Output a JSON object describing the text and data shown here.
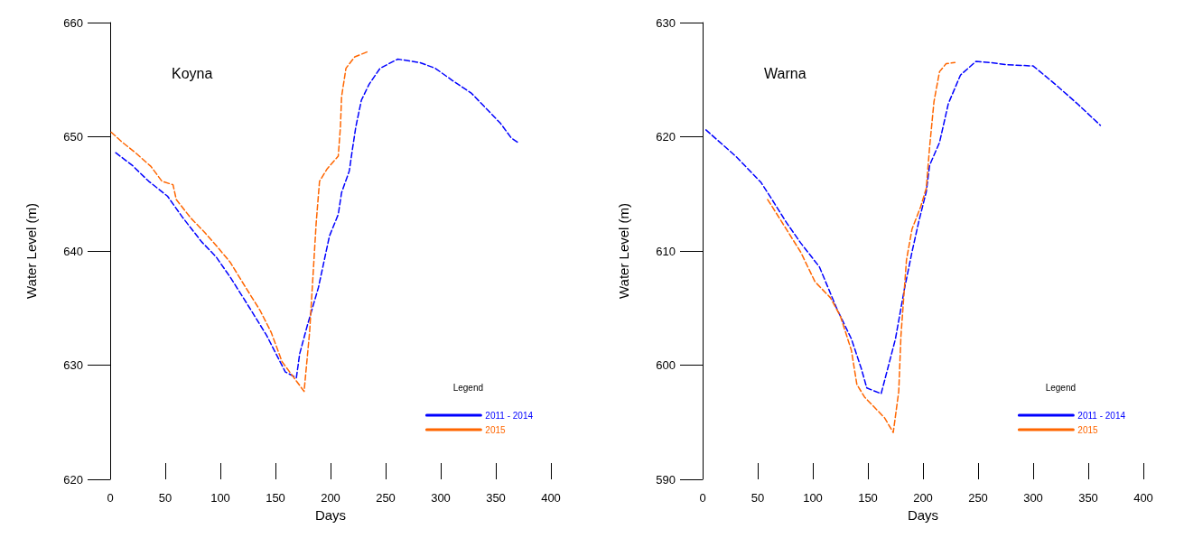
{
  "chart_data": [
    {
      "type": "line",
      "title": "Koyna",
      "xlabel": "Days",
      "ylabel": "Water Level (m)",
      "legend_title": "Legend",
      "legend": "bottom right",
      "grid": false,
      "marker": "none",
      "line_style": "dashed",
      "xlim": [
        0,
        400
      ],
      "xticks": [
        0,
        50,
        100,
        150,
        200,
        250,
        300,
        350,
        400
      ],
      "ylim": [
        620,
        660
      ],
      "yticks": [
        620,
        630,
        640,
        650,
        660
      ],
      "series": [
        {
          "name": "2011 - 2014",
          "color": "#0000ff",
          "x": [
            5,
            20,
            35,
            52,
            66,
            83,
            96,
            109,
            126,
            142,
            159,
            169,
            172,
            179,
            189,
            199,
            207,
            210,
            217,
            220,
            223,
            228,
            235,
            245,
            261,
            281,
            295,
            311,
            328,
            341,
            354,
            364,
            370
          ],
          "values": [
            648.6,
            647.5,
            646.1,
            644.8,
            642.9,
            640.8,
            639.5,
            637.7,
            635.1,
            632.6,
            629.4,
            628.9,
            631.0,
            633.5,
            636.8,
            641.3,
            643.2,
            645.1,
            647.0,
            649.0,
            650.9,
            653.2,
            654.6,
            656.0,
            656.8,
            656.5,
            656.0,
            654.9,
            653.8,
            652.5,
            651.2,
            649.9,
            649.5
          ]
        },
        {
          "name": "2015",
          "color": "#ff6600",
          "x": [
            1,
            10,
            23,
            37,
            47,
            57,
            60,
            73,
            86,
            96,
            109,
            123,
            136,
            146,
            156,
            166,
            176,
            181,
            184,
            187,
            190,
            197,
            207,
            209,
            210,
            214,
            222,
            235
          ],
          "values": [
            650.4,
            649.6,
            648.6,
            647.4,
            646.1,
            645.8,
            644.5,
            642.9,
            641.6,
            640.5,
            639.0,
            636.8,
            634.8,
            632.9,
            630.3,
            629.0,
            627.7,
            632.9,
            637.7,
            642.5,
            646.1,
            647.2,
            648.3,
            650.9,
            653.5,
            656.0,
            657.0,
            657.5
          ]
        }
      ]
    },
    {
      "type": "line",
      "title": "Warna",
      "xlabel": "Days",
      "ylabel": "Water Level (m)",
      "legend_title": "Legend",
      "legend": "bottom right",
      "grid": false,
      "marker": "none",
      "line_style": "dashed",
      "xlim": [
        0,
        400
      ],
      "xticks": [
        0,
        50,
        100,
        150,
        200,
        250,
        300,
        350,
        400
      ],
      "ylim": [
        590,
        630
      ],
      "yticks": [
        590,
        600,
        610,
        620,
        630
      ],
      "series": [
        {
          "name": "2011 - 2014",
          "color": "#0000ff",
          "x": [
            3,
            30,
            53,
            63,
            76,
            89,
            106,
            122,
            135,
            144,
            149,
            162,
            168,
            175,
            183,
            190,
            196,
            203,
            206,
            215,
            223,
            234,
            248,
            261,
            277,
            300,
            320,
            340,
            361
          ],
          "values": [
            620.6,
            618.3,
            616.0,
            614.5,
            612.5,
            610.7,
            608.6,
            604.9,
            602.3,
            599.7,
            598.0,
            597.5,
            599.7,
            602.3,
            606.6,
            609.9,
            612.5,
            615.2,
            617.5,
            619.5,
            622.9,
            625.4,
            626.6,
            626.5,
            626.3,
            626.2,
            624.6,
            622.9,
            621.0
          ]
        },
        {
          "name": "2015",
          "color": "#ff6600",
          "x": [
            59,
            63,
            76,
            89,
            102,
            116,
            125,
            135,
            140,
            147,
            155,
            165,
            173,
            178,
            180,
            185,
            190,
            198,
            203,
            206,
            210,
            215,
            221,
            229
          ],
          "values": [
            614.5,
            613.9,
            611.9,
            609.9,
            607.3,
            605.9,
            604.3,
            601.3,
            598.3,
            597.2,
            596.4,
            595.4,
            594.1,
            597.7,
            602.6,
            609.2,
            611.9,
            613.9,
            615.5,
            619.1,
            623.1,
            625.7,
            626.4,
            626.5
          ]
        }
      ]
    }
  ]
}
